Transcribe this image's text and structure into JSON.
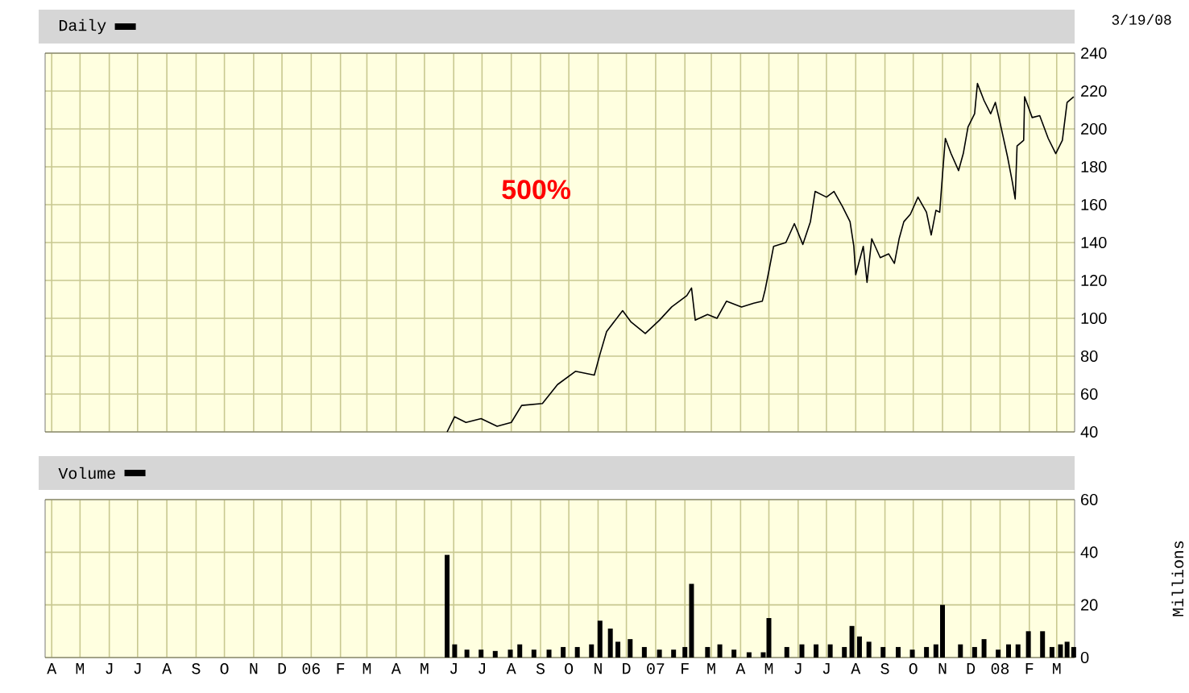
{
  "chart_data": [
    {
      "type": "line",
      "xlim": [
        "2005-03-25",
        "2008-03-20"
      ],
      "ylim": [
        40,
        240
      ],
      "yticks": [
        40,
        60,
        80,
        100,
        120,
        140,
        160,
        180,
        200,
        220,
        240
      ],
      "grid": true,
      "legend": "top left",
      "tick_labels": "y",
      "xticks": [
        {
          "value": "2005-04-01",
          "label": null
        },
        {
          "value": "2005-05-01",
          "label": null
        },
        {
          "value": "2005-06-01",
          "label": null
        },
        {
          "value": "2005-07-01",
          "label": null
        },
        {
          "value": "2005-08-01",
          "label": null
        },
        {
          "value": "2005-09-01",
          "label": null
        },
        {
          "value": "2005-10-01",
          "label": null
        },
        {
          "value": "2005-11-01",
          "label": null
        },
        {
          "value": "2005-12-01",
          "label": null
        },
        {
          "value": "2006-01-01",
          "label": null
        },
        {
          "value": "2006-02-01",
          "label": null
        },
        {
          "value": "2006-03-01",
          "label": null
        },
        {
          "value": "2006-04-01",
          "label": null
        },
        {
          "value": "2006-05-01",
          "label": null
        },
        {
          "value": "2006-06-01",
          "label": null
        },
        {
          "value": "2006-07-01",
          "label": null
        },
        {
          "value": "2006-08-01",
          "label": null
        },
        {
          "value": "2006-09-01",
          "label": null
        },
        {
          "value": "2006-10-01",
          "label": null
        },
        {
          "value": "2006-11-01",
          "label": null
        },
        {
          "value": "2006-12-01",
          "label": null
        },
        {
          "value": "2007-01-01",
          "label": null
        },
        {
          "value": "2007-02-01",
          "label": null
        },
        {
          "value": "2007-03-01",
          "label": null
        },
        {
          "value": "2007-04-01",
          "label": null
        },
        {
          "value": "2007-05-01",
          "label": null
        },
        {
          "value": "2007-06-01",
          "label": null
        },
        {
          "value": "2007-07-01",
          "label": null
        },
        {
          "value": "2007-08-01",
          "label": null
        },
        {
          "value": "2007-09-01",
          "label": null
        },
        {
          "value": "2007-10-01",
          "label": null
        },
        {
          "value": "2007-11-01",
          "label": null
        },
        {
          "value": "2007-12-01",
          "label": null
        },
        {
          "value": "2008-01-01",
          "label": null
        },
        {
          "value": "2008-02-01",
          "label": null
        },
        {
          "value": "2008-03-01",
          "label": null
        }
      ],
      "annotations": [
        "3/19/08",
        "500%"
      ],
      "series": [
        {
          "name": "Daily",
          "color": "#000000",
          "x": [
            "2006-05-25",
            "2006-06-02",
            "2006-06-14",
            "2006-06-30",
            "2006-07-17",
            "2006-08-01",
            "2006-08-12",
            "2006-09-03",
            "2006-09-19",
            "2006-10-08",
            "2006-10-28",
            "2006-11-03",
            "2006-11-10",
            "2006-11-27",
            "2006-12-06",
            "2006-12-21",
            "2007-01-05",
            "2007-01-18",
            "2007-02-03",
            "2007-02-08",
            "2007-02-12",
            "2007-02-25",
            "2007-03-07",
            "2007-03-17",
            "2007-04-02",
            "2007-04-15",
            "2007-04-24",
            "2007-04-27",
            "2007-05-01",
            "2007-05-06",
            "2007-05-19",
            "2007-05-28",
            "2007-06-06",
            "2007-06-14",
            "2007-06-19",
            "2007-07-01",
            "2007-07-09",
            "2007-07-18",
            "2007-07-26",
            "2007-07-30",
            "2007-08-01",
            "2007-08-09",
            "2007-08-13",
            "2007-08-18",
            "2007-08-27",
            "2007-09-05",
            "2007-09-11",
            "2007-09-16",
            "2007-09-21",
            "2007-09-28",
            "2007-10-06",
            "2007-10-15",
            "2007-10-20",
            "2007-10-25",
            "2007-10-29",
            "2007-11-01",
            "2007-11-04",
            "2007-11-10",
            "2007-11-18",
            "2007-11-23",
            "2007-11-28",
            "2007-12-05",
            "2007-12-08",
            "2007-12-15",
            "2007-12-22",
            "2007-12-27",
            "2008-01-02",
            "2008-01-09",
            "2008-01-14",
            "2008-01-17",
            "2008-01-19",
            "2008-01-26",
            "2008-01-27",
            "2008-02-04",
            "2008-02-12",
            "2008-02-21",
            "2008-02-29",
            "2008-03-07",
            "2008-03-12",
            "2008-03-19"
          ],
          "values": [
            40,
            48,
            45,
            47,
            43,
            45,
            54,
            55,
            65,
            72,
            70,
            81,
            93,
            104,
            98,
            92,
            99,
            106,
            112,
            116,
            99,
            102,
            100,
            109,
            106,
            108,
            109,
            115,
            125,
            138,
            140,
            150,
            139,
            151,
            167,
            164,
            167,
            159,
            151,
            138,
            123,
            138,
            119,
            142,
            132,
            134,
            129,
            142,
            151,
            155,
            164,
            156,
            144,
            157,
            156,
            176,
            195,
            187,
            178,
            187,
            201,
            208,
            224,
            215,
            208,
            214,
            201,
            185,
            172,
            163,
            191,
            194,
            217,
            206,
            207,
            195,
            187,
            194,
            214,
            217
          ]
        }
      ]
    },
    {
      "type": "bar",
      "xlim": [
        "2005-03-25",
        "2008-03-20"
      ],
      "ylim": [
        0,
        60
      ],
      "yticks": [
        0,
        20,
        40,
        60
      ],
      "grid": true,
      "legend": "top left",
      "ylabel": "Millions",
      "xticks": [
        {
          "value": "2005-04-01",
          "label": "A"
        },
        {
          "value": "2005-05-01",
          "label": "M"
        },
        {
          "value": "2005-06-01",
          "label": "J"
        },
        {
          "value": "2005-07-01",
          "label": "J"
        },
        {
          "value": "2005-08-01",
          "label": "A"
        },
        {
          "value": "2005-09-01",
          "label": "S"
        },
        {
          "value": "2005-10-01",
          "label": "O"
        },
        {
          "value": "2005-11-01",
          "label": "N"
        },
        {
          "value": "2005-12-01",
          "label": "D"
        },
        {
          "value": "2006-01-01",
          "label": "06"
        },
        {
          "value": "2006-02-01",
          "label": "F"
        },
        {
          "value": "2006-03-01",
          "label": "M"
        },
        {
          "value": "2006-04-01",
          "label": "A"
        },
        {
          "value": "2006-05-01",
          "label": "M"
        },
        {
          "value": "2006-06-01",
          "label": "J"
        },
        {
          "value": "2006-07-01",
          "label": "J"
        },
        {
          "value": "2006-08-01",
          "label": "A"
        },
        {
          "value": "2006-09-01",
          "label": "S"
        },
        {
          "value": "2006-10-01",
          "label": "O"
        },
        {
          "value": "2006-11-01",
          "label": "N"
        },
        {
          "value": "2006-12-01",
          "label": "D"
        },
        {
          "value": "2007-01-01",
          "label": "07"
        },
        {
          "value": "2007-02-01",
          "label": "F"
        },
        {
          "value": "2007-03-01",
          "label": "M"
        },
        {
          "value": "2007-04-01",
          "label": "A"
        },
        {
          "value": "2007-05-01",
          "label": "M"
        },
        {
          "value": "2007-06-01",
          "label": "J"
        },
        {
          "value": "2007-07-01",
          "label": "J"
        },
        {
          "value": "2007-08-01",
          "label": "A"
        },
        {
          "value": "2007-09-01",
          "label": "S"
        },
        {
          "value": "2007-10-01",
          "label": "O"
        },
        {
          "value": "2007-11-01",
          "label": "N"
        },
        {
          "value": "2007-12-01",
          "label": "D"
        },
        {
          "value": "2008-01-01",
          "label": "08"
        },
        {
          "value": "2008-02-01",
          "label": "F"
        },
        {
          "value": "2008-03-01",
          "label": "M"
        }
      ],
      "series": [
        {
          "name": "Volume",
          "color": "#000000",
          "x": [
            "2006-05-25",
            "2006-06-02",
            "2006-06-15",
            "2006-06-30",
            "2006-07-15",
            "2006-07-31",
            "2006-08-10",
            "2006-08-25",
            "2006-09-10",
            "2006-09-25",
            "2006-10-10",
            "2006-10-25",
            "2006-11-03",
            "2006-11-14",
            "2006-11-22",
            "2006-12-05",
            "2006-12-20",
            "2007-01-05",
            "2007-01-20",
            "2007-02-01",
            "2007-02-08",
            "2007-02-25",
            "2007-03-10",
            "2007-03-25",
            "2007-04-10",
            "2007-04-25",
            "2007-05-01",
            "2007-05-20",
            "2007-06-05",
            "2007-06-20",
            "2007-07-05",
            "2007-07-20",
            "2007-07-28",
            "2007-08-05",
            "2007-08-15",
            "2007-08-30",
            "2007-09-15",
            "2007-09-30",
            "2007-10-15",
            "2007-10-25",
            "2007-11-01",
            "2007-11-20",
            "2007-12-05",
            "2007-12-15",
            "2007-12-30",
            "2008-01-10",
            "2008-01-20",
            "2008-01-31",
            "2008-02-15",
            "2008-02-25",
            "2008-03-05",
            "2008-03-12",
            "2008-03-19"
          ],
          "values": [
            39,
            5,
            3,
            3,
            2.5,
            3,
            5,
            3,
            3,
            4,
            4,
            5,
            14,
            11,
            6,
            7,
            4,
            3,
            3,
            4,
            28,
            4,
            5,
            3,
            2,
            2,
            15,
            4,
            5,
            5,
            5,
            4,
            12,
            8,
            6,
            4,
            4,
            3,
            4,
            5,
            20,
            5,
            4,
            7,
            3,
            5,
            5,
            10,
            10,
            4,
            5,
            6,
            4
          ]
        }
      ]
    }
  ]
}
